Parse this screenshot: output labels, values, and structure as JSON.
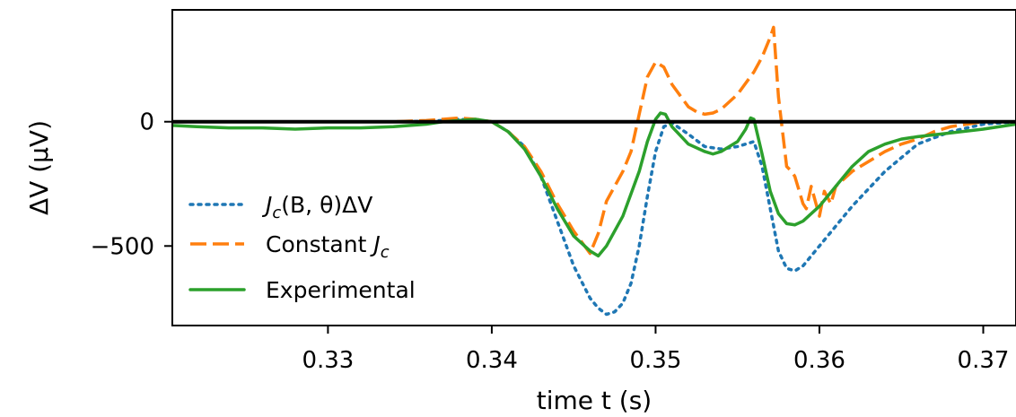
{
  "chart_data": {
    "type": "line",
    "xlabel": "time t (s)",
    "ylabel": "ΔV (μV)",
    "xlim": [
      0.3205,
      0.372
    ],
    "ylim": [
      -820,
      450
    ],
    "xticks": [
      0.33,
      0.34,
      0.35,
      0.36,
      0.37
    ],
    "xtick_labels": [
      "0.33",
      "0.34",
      "0.35",
      "0.36",
      "0.37"
    ],
    "yticks": [
      0,
      -500
    ],
    "ytick_labels": [
      "0",
      "−500"
    ],
    "zero_line": true,
    "grid": false,
    "legend_position": "lower-left",
    "series": [
      {
        "name": "Jc(B,θ)ΔV",
        "label_parts": [
          "J",
          "c",
          "(B, θ)ΔV"
        ],
        "style": "dotted",
        "color": "#1f77b4",
        "x": [
          0.3205,
          0.325,
          0.33,
          0.335,
          0.337,
          0.338,
          0.339,
          0.34,
          0.341,
          0.342,
          0.343,
          0.344,
          0.345,
          0.346,
          0.3465,
          0.347,
          0.3475,
          0.348,
          0.3485,
          0.349,
          0.3495,
          0.35,
          0.3505,
          0.351,
          0.352,
          0.353,
          0.354,
          0.355,
          0.3555,
          0.356,
          0.3565,
          0.357,
          0.3575,
          0.358,
          0.3585,
          0.359,
          0.36,
          0.361,
          0.362,
          0.364,
          0.366,
          0.368,
          0.37,
          0.372
        ],
        "y": [
          0,
          0,
          0,
          0,
          5,
          10,
          5,
          0,
          -40,
          -100,
          -220,
          -400,
          -580,
          -710,
          -750,
          -775,
          -765,
          -730,
          -650,
          -500,
          -300,
          -120,
          -20,
          -5,
          -50,
          -100,
          -110,
          -100,
          -90,
          -80,
          -180,
          -350,
          -520,
          -590,
          -600,
          -580,
          -500,
          -420,
          -340,
          -200,
          -90,
          -40,
          -10,
          0
        ]
      },
      {
        "name": "Constant Jc",
        "label_parts": [
          "Constant ",
          "J",
          "c"
        ],
        "style": "dashed",
        "color": "#ff7f0e",
        "x": [
          0.3205,
          0.325,
          0.33,
          0.334,
          0.336,
          0.337,
          0.338,
          0.339,
          0.34,
          0.341,
          0.342,
          0.343,
          0.344,
          0.345,
          0.346,
          0.3465,
          0.347,
          0.348,
          0.3485,
          0.349,
          0.3495,
          0.35,
          0.3505,
          0.351,
          0.352,
          0.3525,
          0.353,
          0.3535,
          0.354,
          0.355,
          0.356,
          0.3565,
          0.357,
          0.3572,
          0.3575,
          0.358,
          0.3583,
          0.3585,
          0.359,
          0.3592,
          0.3595,
          0.36,
          0.3603,
          0.3607,
          0.361,
          0.362,
          0.363,
          0.364,
          0.365,
          0.366,
          0.367,
          0.368,
          0.369,
          0.37,
          0.372
        ],
        "y": [
          0,
          0,
          0,
          0,
          5,
          10,
          15,
          10,
          0,
          -40,
          -100,
          -200,
          -330,
          -440,
          -530,
          -450,
          -320,
          -200,
          -120,
          30,
          180,
          240,
          220,
          150,
          60,
          40,
          30,
          35,
          50,
          110,
          200,
          260,
          340,
          380,
          100,
          -180,
          -200,
          -220,
          -330,
          -350,
          -260,
          -380,
          -280,
          -330,
          -260,
          -200,
          -160,
          -120,
          -90,
          -70,
          -40,
          -20,
          -10,
          0,
          0
        ]
      },
      {
        "name": "Experimental",
        "style": "solid",
        "color": "#2ca02c",
        "x": [
          0.3205,
          0.322,
          0.324,
          0.326,
          0.328,
          0.33,
          0.332,
          0.334,
          0.335,
          0.336,
          0.337,
          0.338,
          0.339,
          0.34,
          0.341,
          0.342,
          0.343,
          0.344,
          0.345,
          0.346,
          0.3465,
          0.347,
          0.348,
          0.349,
          0.3495,
          0.35,
          0.3503,
          0.3506,
          0.351,
          0.352,
          0.353,
          0.3535,
          0.354,
          0.355,
          0.3555,
          0.3558,
          0.356,
          0.3565,
          0.357,
          0.3575,
          0.358,
          0.3585,
          0.359,
          0.36,
          0.361,
          0.362,
          0.363,
          0.364,
          0.365,
          0.366,
          0.368,
          0.37,
          0.372
        ],
        "y": [
          -15,
          -20,
          -25,
          -25,
          -30,
          -25,
          -25,
          -20,
          -15,
          -10,
          0,
          5,
          10,
          0,
          -40,
          -110,
          -220,
          -350,
          -460,
          -520,
          -540,
          -500,
          -380,
          -200,
          -80,
          10,
          35,
          30,
          -20,
          -90,
          -120,
          -130,
          -120,
          -80,
          -30,
          15,
          10,
          -130,
          -280,
          -370,
          -410,
          -415,
          -400,
          -340,
          -260,
          -180,
          -120,
          -90,
          -70,
          -60,
          -45,
          -30,
          -10
        ]
      }
    ]
  }
}
